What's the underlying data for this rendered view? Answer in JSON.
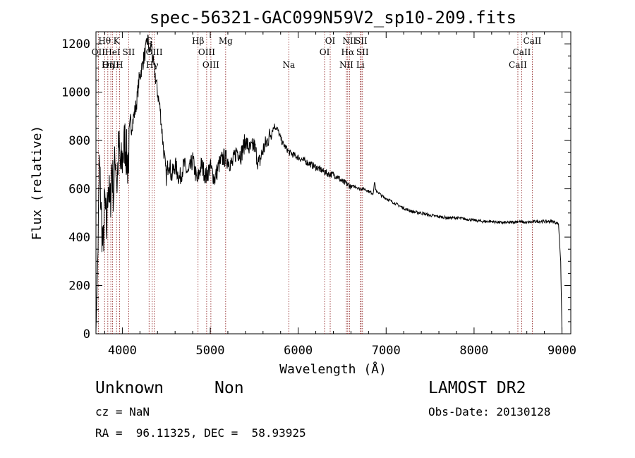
{
  "chart_data": {
    "type": "line",
    "title": "spec-56321-GAC099N59V2_sp10-209.fits",
    "xlabel": "Wavelength (Å)",
    "ylabel": "Flux (relative)",
    "xlim": [
      3700,
      9100
    ],
    "ylim": [
      0,
      1250
    ],
    "xticks": [
      4000,
      5000,
      6000,
      7000,
      8000,
      9000
    ],
    "yticks": [
      0,
      200,
      400,
      600,
      800,
      1000,
      1200
    ],
    "grid": false,
    "line_color": "#000000",
    "marker_color": "#8b1a1a",
    "series": [
      {
        "x": [
          3700,
          3720,
          3740,
          3760,
          3780,
          3800,
          3820,
          3840,
          3860,
          3880,
          3900,
          3920,
          3940,
          3960,
          3980,
          4000,
          4030,
          4060,
          4100,
          4130,
          4160,
          4190,
          4220,
          4250,
          4270,
          4290,
          4310,
          4330,
          4350,
          4370,
          4400,
          4430,
          4460,
          4500,
          4530,
          4560,
          4600,
          4650,
          4700,
          4750,
          4800,
          4850,
          4900,
          4950,
          5000,
          5050,
          5100,
          5150,
          5200,
          5250,
          5300,
          5350,
          5400,
          5450,
          5500,
          5550,
          5600,
          5650,
          5700,
          5730,
          5760,
          5790,
          5820,
          5860,
          5900,
          5950,
          6000,
          6050,
          6100,
          6150,
          6200,
          6250,
          6300,
          6350,
          6400,
          6450,
          6500,
          6550,
          6600,
          6650,
          6700,
          6750,
          6800,
          6850,
          6870,
          6880,
          6890,
          6900,
          6950,
          7000,
          7100,
          7200,
          7300,
          7400,
          7500,
          7600,
          7700,
          7800,
          7900,
          8000,
          8100,
          8200,
          8300,
          8400,
          8500,
          8600,
          8700,
          8800,
          8900,
          8960,
          8985,
          9000
        ],
        "y": [
          10,
          300,
          700,
          500,
          340,
          550,
          420,
          650,
          500,
          700,
          580,
          750,
          620,
          780,
          680,
          720,
          800,
          700,
          850,
          900,
          950,
          1050,
          1100,
          1150,
          1180,
          1220,
          1160,
          1200,
          1120,
          1080,
          1000,
          930,
          800,
          650,
          720,
          650,
          700,
          640,
          700,
          660,
          720,
          630,
          700,
          650,
          690,
          640,
          700,
          730,
          720,
          700,
          760,
          740,
          800,
          760,
          780,
          700,
          760,
          800,
          840,
          860,
          850,
          820,
          790,
          770,
          750,
          740,
          730,
          720,
          710,
          700,
          690,
          680,
          670,
          660,
          660,
          650,
          630,
          620,
          610,
          610,
          600,
          600,
          590,
          580,
          630,
          600,
          585,
          590,
          570,
          560,
          540,
          520,
          505,
          500,
          490,
          485,
          480,
          480,
          475,
          470,
          465,
          465,
          460,
          460,
          465,
          460,
          465,
          465,
          465,
          455,
          300,
          0
        ]
      }
    ],
    "spectral_lines": [
      {
        "label": "Hθ",
        "wavelength": 3798,
        "row": 0
      },
      {
        "label": "K",
        "wavelength": 3934,
        "row": 0
      },
      {
        "label": "OII",
        "wavelength": 3727,
        "row": 1
      },
      {
        "label": "HeI",
        "wavelength": 3889,
        "row": 1
      },
      {
        "label": "SII",
        "wavelength": 4072,
        "row": 1
      },
      {
        "label": "OIII",
        "wavelength": 3869,
        "row": 2
      },
      {
        "label": "Hη",
        "wavelength": 3835,
        "row": 2
      },
      {
        "label": "H",
        "wavelength": 3968,
        "row": 2
      },
      {
        "label": "G",
        "wavelength": 4304,
        "row": 0
      },
      {
        "label": "OIII",
        "wavelength": 4363,
        "row": 1
      },
      {
        "label": "Hγ",
        "wavelength": 4340,
        "row": 2
      },
      {
        "label": "Hβ",
        "wavelength": 4861,
        "row": 0
      },
      {
        "label": "Mg",
        "wavelength": 5175,
        "row": 0
      },
      {
        "label": "OIII",
        "wavelength": 4959,
        "row": 1
      },
      {
        "label": "OIII",
        "wavelength": 5007,
        "row": 2
      },
      {
        "label": "Na",
        "wavelength": 5893,
        "row": 2
      },
      {
        "label": "OI",
        "wavelength": 6364,
        "row": 0
      },
      {
        "label": "OI",
        "wavelength": 6300,
        "row": 1
      },
      {
        "label": "NII",
        "wavelength": 6583,
        "row": 0
      },
      {
        "label": "SII",
        "wavelength": 6716,
        "row": 0
      },
      {
        "label": "Hα",
        "wavelength": 6563,
        "row": 1
      },
      {
        "label": "SII",
        "wavelength": 6731,
        "row": 1
      },
      {
        "label": "NII",
        "wavelength": 6548,
        "row": 2
      },
      {
        "label": "Li",
        "wavelength": 6707,
        "row": 2
      },
      {
        "label": "CaII",
        "wavelength": 8662,
        "row": 0
      },
      {
        "label": "CaII",
        "wavelength": 8542,
        "row": 1
      },
      {
        "label": "CaII",
        "wavelength": 8498,
        "row": 2
      }
    ]
  },
  "info": {
    "class_label": "Unknown",
    "subclass_label": "Non",
    "survey_label": "LAMOST DR2",
    "cz_text": "cz = NaN",
    "obs_date_text": "Obs-Date: 20130128",
    "coords_text": "RA =  96.11325, DEC =  58.93925"
  }
}
